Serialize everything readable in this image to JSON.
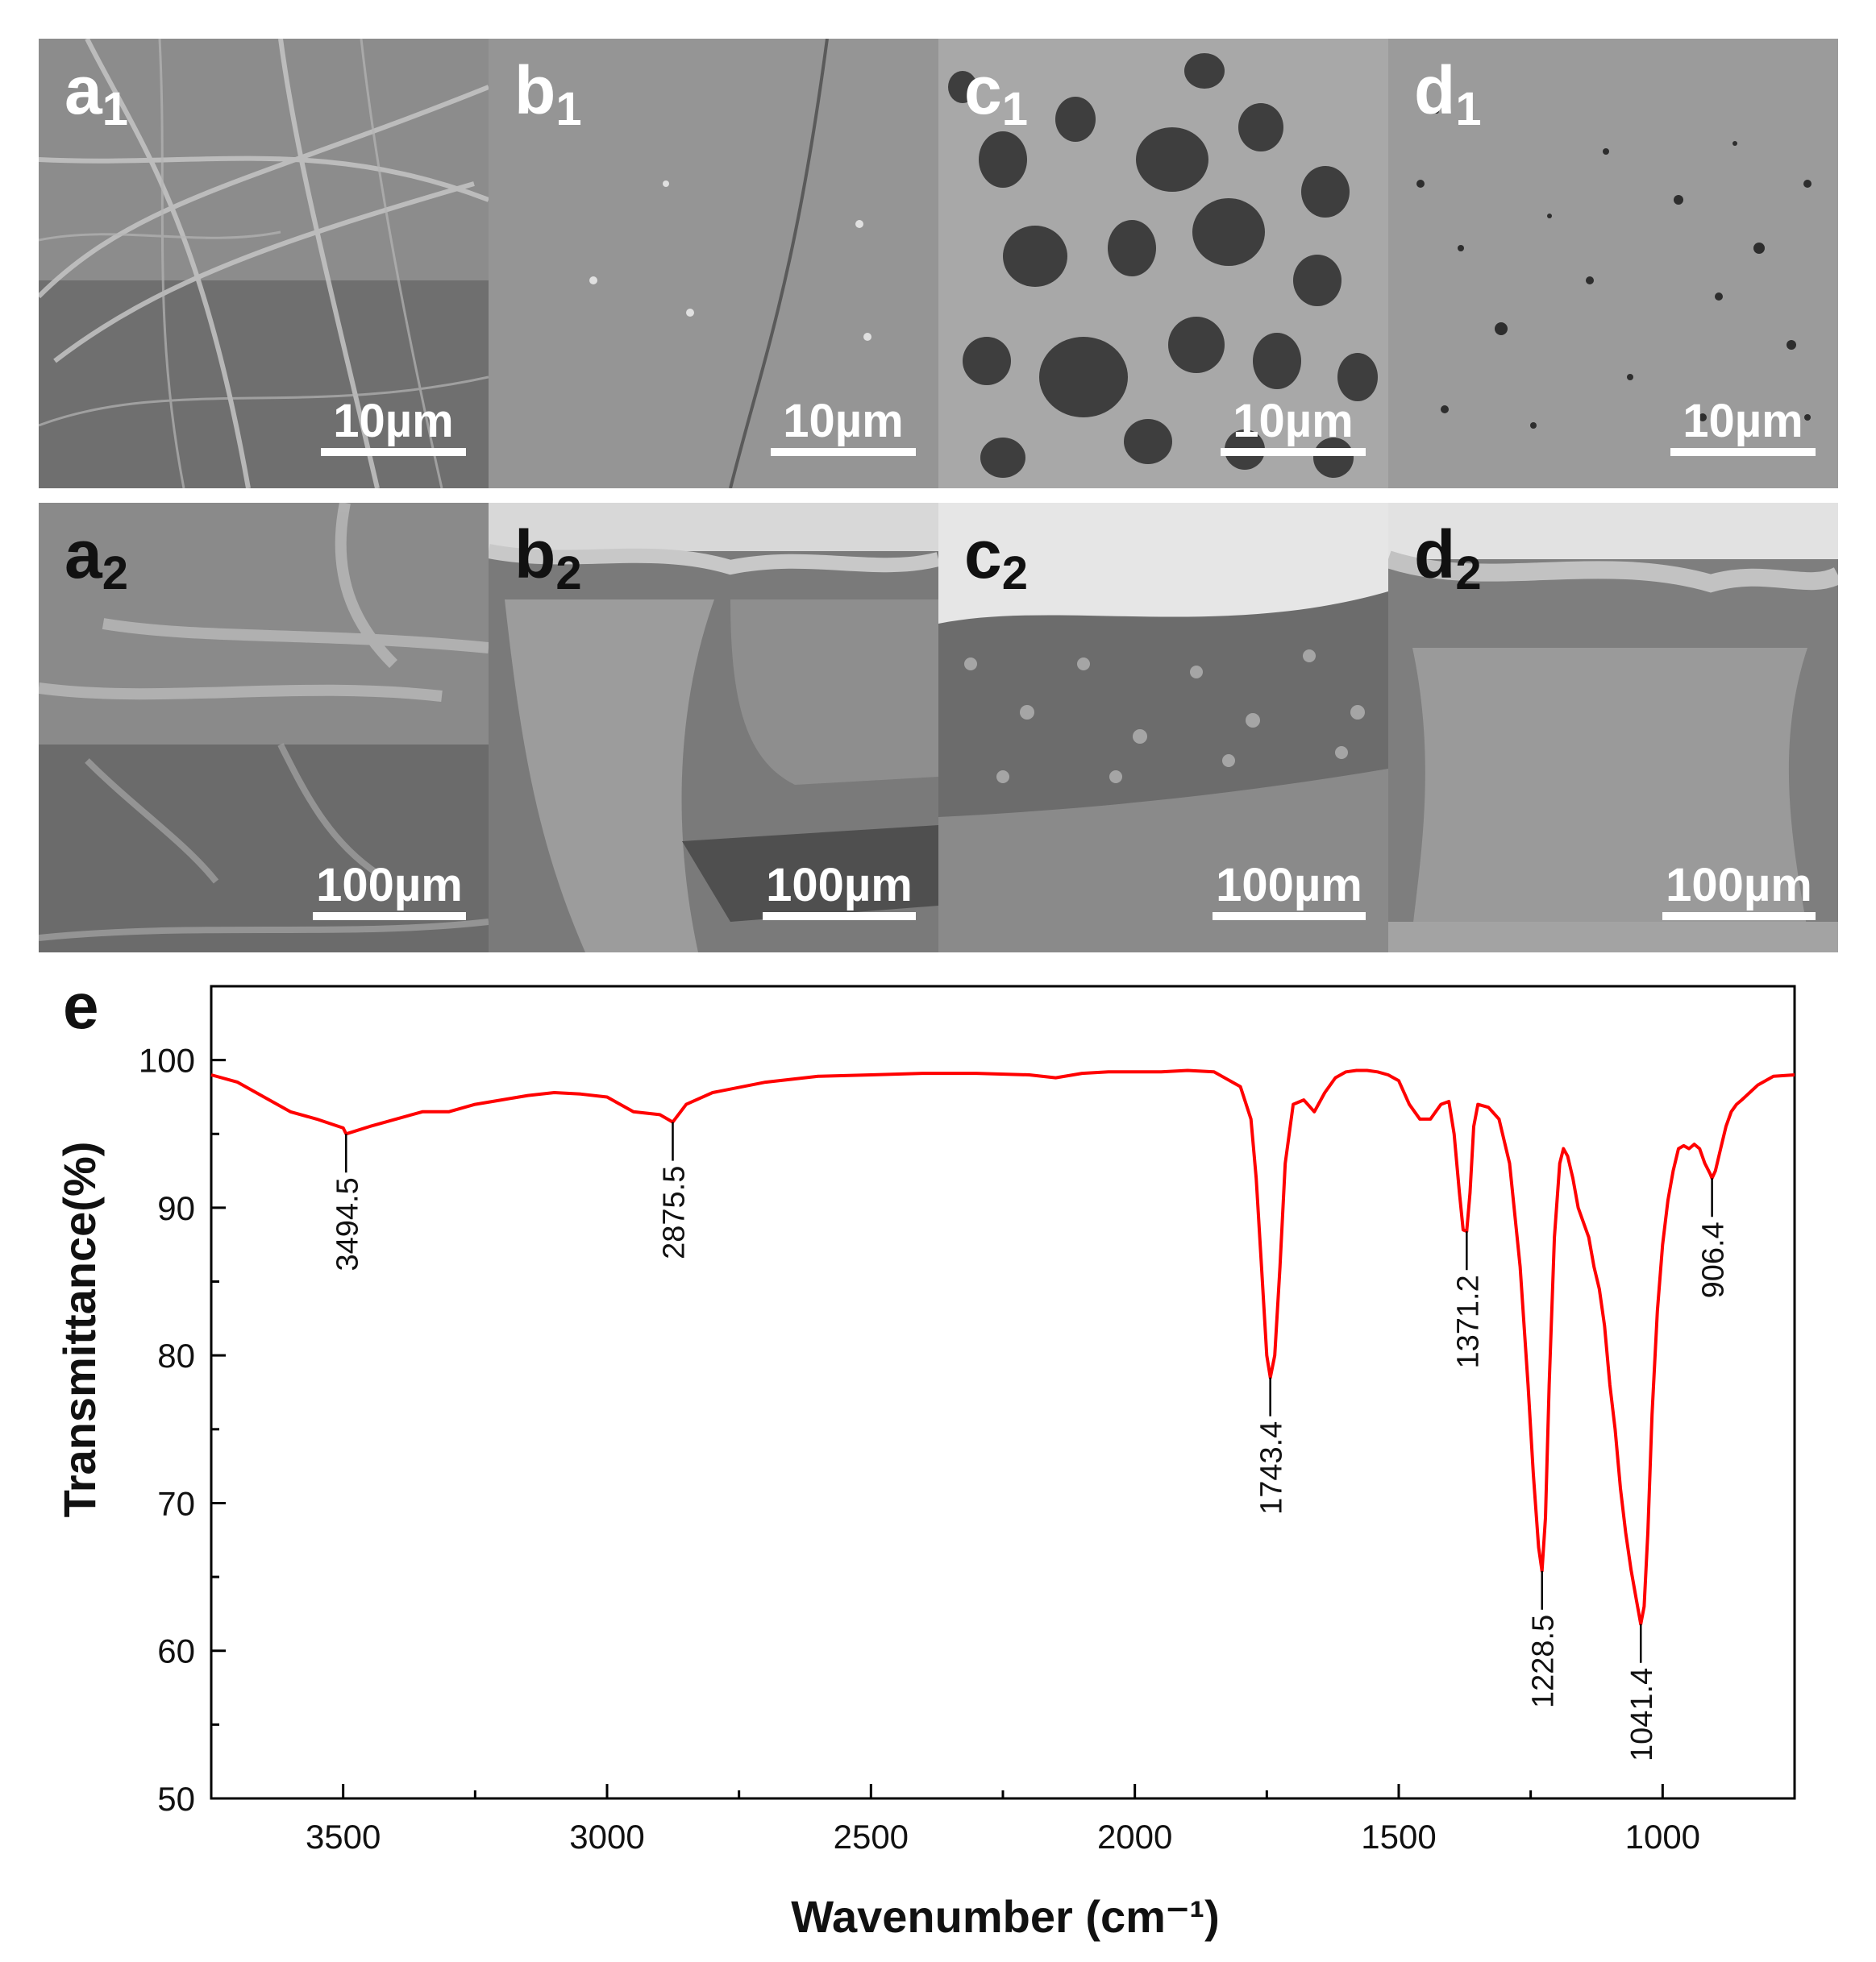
{
  "panels": [
    {
      "label": "a",
      "sub": "1",
      "scale": "10µm",
      "theme": "light"
    },
    {
      "label": "b",
      "sub": "1",
      "scale": "10µm",
      "theme": "light"
    },
    {
      "label": "c",
      "sub": "1",
      "scale": "10µm",
      "theme": "light"
    },
    {
      "label": "d",
      "sub": "1",
      "scale": "10µm",
      "theme": "light"
    },
    {
      "label": "a",
      "sub": "2",
      "scale": "100µm",
      "theme": "dark"
    },
    {
      "label": "b",
      "sub": "2",
      "scale": "100µm",
      "theme": "dark"
    },
    {
      "label": "c",
      "sub": "2",
      "scale": "100µm",
      "theme": "dark"
    },
    {
      "label": "d",
      "sub": "2",
      "scale": "100µm",
      "theme": "dark"
    }
  ],
  "chart_data": {
    "type": "line",
    "panel_label": "e",
    "xlabel": "Wavenumber (cm⁻¹)",
    "ylabel": "Transmittance(%)",
    "xlim": [
      3750,
      750
    ],
    "ylim": [
      50,
      105
    ],
    "x_ticks": [
      3500,
      3000,
      2500,
      2000,
      1500,
      1000
    ],
    "y_ticks": [
      50,
      60,
      70,
      80,
      90,
      100
    ],
    "grid": false,
    "line_color": "#ff0000",
    "series": [
      {
        "x": [
          3750,
          3700,
          3650,
          3600,
          3550,
          3500,
          3494.5,
          3450,
          3400,
          3350,
          3300,
          3250,
          3200,
          3150,
          3100,
          3050,
          3000,
          2950,
          2900,
          2875.5,
          2850,
          2800,
          2700,
          2600,
          2500,
          2400,
          2300,
          2200,
          2150,
          2100,
          2050,
          2000,
          1950,
          1900,
          1850,
          1800,
          1780,
          1770,
          1760,
          1750,
          1743.4,
          1735,
          1725,
          1715,
          1700,
          1680,
          1660,
          1640,
          1620,
          1600,
          1580,
          1560,
          1540,
          1520,
          1500,
          1480,
          1460,
          1440,
          1420,
          1405,
          1395,
          1385,
          1378,
          1371.2,
          1365,
          1358,
          1350,
          1330,
          1310,
          1290,
          1270,
          1255,
          1245,
          1235,
          1228.5,
          1222,
          1215,
          1205,
          1195,
          1188,
          1180,
          1170,
          1160,
          1150,
          1140,
          1130,
          1120,
          1110,
          1100,
          1090,
          1080,
          1070,
          1060,
          1050,
          1041.4,
          1035,
          1028,
          1020,
          1010,
          1000,
          990,
          980,
          970,
          960,
          950,
          940,
          930,
          920,
          910,
          906.4,
          900,
          890,
          880,
          870,
          860,
          850,
          820,
          790,
          750
        ],
        "y": [
          99.0,
          98.5,
          97.5,
          96.5,
          96.0,
          95.4,
          95.0,
          95.5,
          96.0,
          96.5,
          96.5,
          97.0,
          97.3,
          97.6,
          97.8,
          97.7,
          97.5,
          96.5,
          96.3,
          95.8,
          97.0,
          97.8,
          98.5,
          98.9,
          99.0,
          99.1,
          99.1,
          99.0,
          98.8,
          99.1,
          99.2,
          99.2,
          99.2,
          99.3,
          99.2,
          98.2,
          96.0,
          92.0,
          86.0,
          80.0,
          78.5,
          80.0,
          86.0,
          93.0,
          97.0,
          97.3,
          96.5,
          97.8,
          98.8,
          99.2,
          99.3,
          99.3,
          99.2,
          99.0,
          98.6,
          97.0,
          96.0,
          96.0,
          97.0,
          97.2,
          95.0,
          91.0,
          88.5,
          88.4,
          91.0,
          95.5,
          97.0,
          96.8,
          96.0,
          93.0,
          86.0,
          78.0,
          72.0,
          67.0,
          65.4,
          69.0,
          78.0,
          88.0,
          93.0,
          94.0,
          93.5,
          92.0,
          90.0,
          89.0,
          88.0,
          86.0,
          84.5,
          82.0,
          78.0,
          75.0,
          71.0,
          68.0,
          65.5,
          63.5,
          61.8,
          63.0,
          68.0,
          76.0,
          83.0,
          87.5,
          90.5,
          92.5,
          94.0,
          94.2,
          94.0,
          94.3,
          94.0,
          93.0,
          92.3,
          92.0,
          92.5,
          94.0,
          95.5,
          96.5,
          97.0,
          97.3,
          98.3,
          98.9,
          99.0
        ]
      }
    ],
    "annotations": [
      {
        "label": "3494.5",
        "x": 3494.5,
        "y": 95.0
      },
      {
        "label": "2875.5",
        "x": 2875.5,
        "y": 95.8
      },
      {
        "label": "1743.4",
        "x": 1743.4,
        "y": 78.5
      },
      {
        "label": "1371.2",
        "x": 1371.2,
        "y": 88.4
      },
      {
        "label": "1228.5",
        "x": 1228.5,
        "y": 65.4
      },
      {
        "label": "1041.4",
        "x": 1041.4,
        "y": 61.8
      },
      {
        "label": "906.4",
        "x": 906.4,
        "y": 92.0
      }
    ]
  }
}
